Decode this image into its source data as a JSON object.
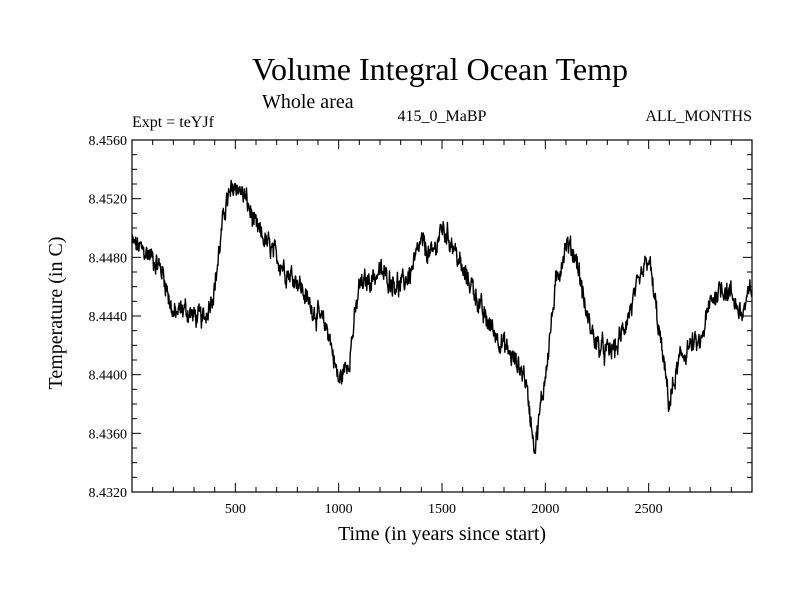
{
  "chart_data": {
    "type": "line",
    "title": "Volume Integral Ocean Temp",
    "subtitle": "Whole area",
    "left_label": "Expt = teYJf",
    "center_label": "415_0_MaBP",
    "right_label": "ALL_MONTHS",
    "xlabel": "Time (in years since start)",
    "ylabel": "Temperature (in C)",
    "xlim": [
      0,
      3000
    ],
    "ylim": [
      8.432,
      8.456
    ],
    "xticks": [
      500,
      1000,
      1500,
      2000,
      2500
    ],
    "xtick_labels": [
      "500",
      "1000",
      "1500",
      "2000",
      "2500"
    ],
    "yticks": [
      8.432,
      8.436,
      8.44,
      8.444,
      8.448,
      8.452,
      8.456
    ],
    "ytick_labels": [
      "8.4320",
      "8.4360",
      "8.4400",
      "8.4440",
      "8.4480",
      "8.4520",
      "8.4560"
    ],
    "series": [
      {
        "name": "teYJf",
        "x": [
          0,
          50,
          100,
          150,
          200,
          250,
          300,
          350,
          400,
          450,
          500,
          550,
          600,
          650,
          700,
          750,
          800,
          850,
          900,
          950,
          1000,
          1050,
          1100,
          1150,
          1200,
          1250,
          1300,
          1350,
          1400,
          1450,
          1500,
          1550,
          1600,
          1650,
          1700,
          1750,
          1800,
          1850,
          1900,
          1950,
          2000,
          2050,
          2100,
          2150,
          2200,
          2250,
          2300,
          2350,
          2400,
          2450,
          2500,
          2550,
          2600,
          2650,
          2700,
          2750,
          2800,
          2850,
          2900,
          2950,
          3000
        ],
        "values": [
          8.449,
          8.4485,
          8.448,
          8.447,
          8.444,
          8.4445,
          8.444,
          8.4438,
          8.446,
          8.4515,
          8.453,
          8.452,
          8.45,
          8.449,
          8.448,
          8.447,
          8.4465,
          8.445,
          8.444,
          8.443,
          8.4395,
          8.441,
          8.446,
          8.4465,
          8.447,
          8.4465,
          8.446,
          8.447,
          8.449,
          8.448,
          8.45,
          8.449,
          8.447,
          8.446,
          8.444,
          8.443,
          8.442,
          8.441,
          8.44,
          8.435,
          8.44,
          8.446,
          8.449,
          8.448,
          8.444,
          8.442,
          8.4415,
          8.442,
          8.444,
          8.446,
          8.448,
          8.443,
          8.438,
          8.441,
          8.442,
          8.442,
          8.445,
          8.446,
          8.4455,
          8.444,
          8.446
        ]
      }
    ]
  }
}
